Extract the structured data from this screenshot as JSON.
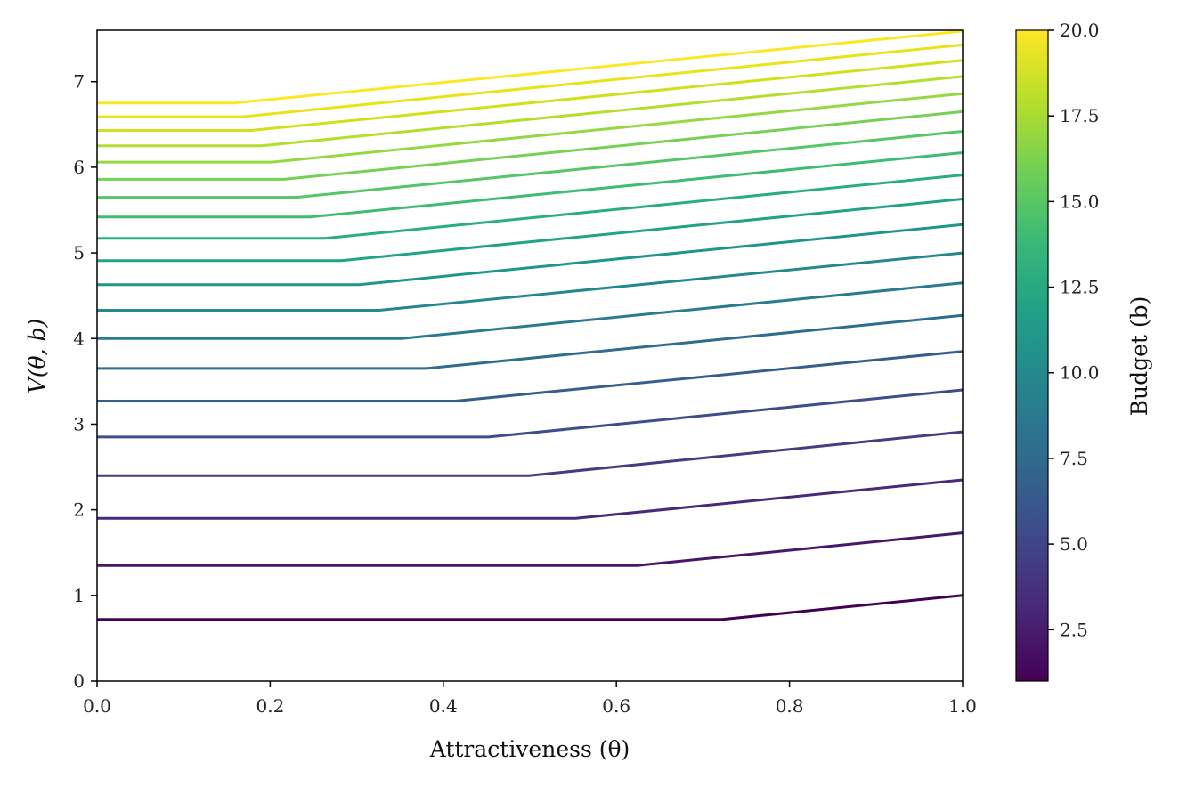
{
  "chart_data": {
    "type": "line",
    "xlabel": "Attractiveness (θ)",
    "ylabel": "V(θ, b)",
    "xlim": [
      0,
      1
    ],
    "ylim": [
      0,
      7.6
    ],
    "xticks": [
      "0.0",
      "0.2",
      "0.4",
      "0.6",
      "0.8",
      "1.0"
    ],
    "yticks": [
      "0",
      "1",
      "2",
      "3",
      "4",
      "5",
      "6",
      "7"
    ],
    "grid": false,
    "colorbar": {
      "label": "Budget (b)",
      "colormap": "viridis",
      "range": [
        1,
        20
      ],
      "ticks": [
        "2.5",
        "5.0",
        "7.5",
        "10.0",
        "12.5",
        "15.0",
        "17.5",
        "20.0"
      ],
      "colors": [
        "#440154",
        "#482878",
        "#3e4989",
        "#31688e",
        "#26828e",
        "#1f9e89",
        "#35b779",
        "#6ece58",
        "#b5de2b",
        "#fde725"
      ]
    },
    "series": [
      {
        "budget": 1,
        "x": [
          0,
          0.722,
          1.0
        ],
        "y": [
          0.72,
          0.72,
          1.0
        ],
        "color": "#440154"
      },
      {
        "budget": 2,
        "x": [
          0,
          0.624,
          1.0
        ],
        "y": [
          1.35,
          1.35,
          1.73
        ],
        "color": "#481769"
      },
      {
        "budget": 3,
        "x": [
          0,
          0.553,
          1.0
        ],
        "y": [
          1.9,
          1.9,
          2.35
        ],
        "color": "#472a7a"
      },
      {
        "budget": 4,
        "x": [
          0,
          0.499,
          1.0
        ],
        "y": [
          2.4,
          2.4,
          2.91
        ],
        "color": "#433d84"
      },
      {
        "budget": 5,
        "x": [
          0,
          0.452,
          1.0
        ],
        "y": [
          2.85,
          2.85,
          3.4
        ],
        "color": "#3d4e8a"
      },
      {
        "budget": 6,
        "x": [
          0,
          0.414,
          1.0
        ],
        "y": [
          3.27,
          3.27,
          3.85
        ],
        "color": "#355e8d"
      },
      {
        "budget": 7,
        "x": [
          0,
          0.38,
          1.0
        ],
        "y": [
          3.65,
          3.65,
          4.27
        ],
        "color": "#2e6d8e"
      },
      {
        "budget": 8,
        "x": [
          0,
          0.352,
          1.0
        ],
        "y": [
          4.0,
          4.0,
          4.65
        ],
        "color": "#297b8e"
      },
      {
        "budget": 9,
        "x": [
          0,
          0.326,
          1.0
        ],
        "y": [
          4.33,
          4.33,
          5.0
        ],
        "color": "#23898e"
      },
      {
        "budget": 10,
        "x": [
          0,
          0.303,
          1.0
        ],
        "y": [
          4.63,
          4.63,
          5.33
        ],
        "color": "#1f968b"
      },
      {
        "budget": 11,
        "x": [
          0,
          0.282,
          1.0
        ],
        "y": [
          4.91,
          4.91,
          5.63
        ],
        "color": "#20a386"
      },
      {
        "budget": 12,
        "x": [
          0,
          0.263,
          1.0
        ],
        "y": [
          5.17,
          5.17,
          5.91
        ],
        "color": "#29af7f"
      },
      {
        "budget": 13,
        "x": [
          0,
          0.246,
          1.0
        ],
        "y": [
          5.42,
          5.42,
          6.17
        ],
        "color": "#3dbc74"
      },
      {
        "budget": 14,
        "x": [
          0,
          0.23,
          1.0
        ],
        "y": [
          5.65,
          5.65,
          6.42
        ],
        "color": "#56c667"
      },
      {
        "budget": 15,
        "x": [
          0,
          0.216,
          1.0
        ],
        "y": [
          5.86,
          5.86,
          6.65
        ],
        "color": "#75d054"
      },
      {
        "budget": 16,
        "x": [
          0,
          0.202,
          1.0
        ],
        "y": [
          6.06,
          6.06,
          6.86
        ],
        "color": "#95d840"
      },
      {
        "budget": 17,
        "x": [
          0,
          0.19,
          1.0
        ],
        "y": [
          6.25,
          6.25,
          7.06
        ],
        "color": "#b5de2b"
      },
      {
        "budget": 18,
        "x": [
          0,
          0.178,
          1.0
        ],
        "y": [
          6.43,
          6.43,
          7.25
        ],
        "color": "#d0e11c"
      },
      {
        "budget": 19,
        "x": [
          0,
          0.168,
          1.0
        ],
        "y": [
          6.59,
          6.59,
          7.43
        ],
        "color": "#e8e419"
      },
      {
        "budget": 20,
        "x": [
          0,
          0.158,
          1.0
        ],
        "y": [
          6.75,
          6.75,
          7.59
        ],
        "color": "#fde725"
      }
    ]
  }
}
